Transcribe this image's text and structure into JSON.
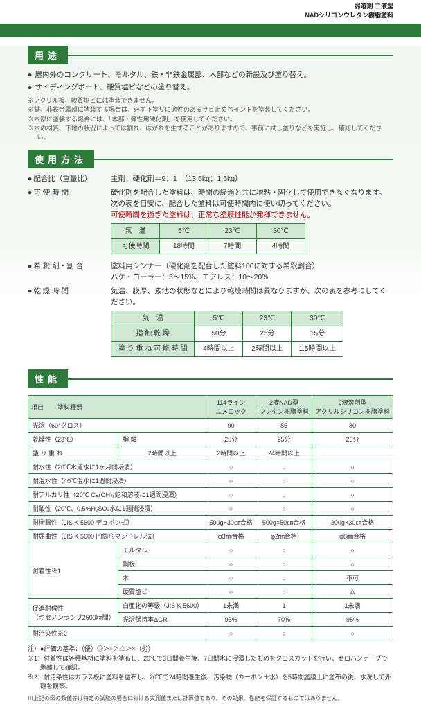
{
  "header": {
    "line1": "弱溶剤 二液型",
    "line2": "NADシリコンウレタン樹脂塗料"
  },
  "sections": {
    "usage": "用途",
    "method": "使用方法",
    "perf": "性能"
  },
  "usage_bullets": [
    "屋内外のコンクリート、モルタル、鉄・非鉄金属部、木部などの新設及び塗り替え。",
    "サイディングボード、硬質塩ビなどの塗り替え。"
  ],
  "usage_notes": [
    "※アクリル板、軟質塩ビには塗装できません。",
    "※鉄、非鉄金属部に塗装する場合は、必ず下塗りに適性のあるサビ止めペイントを塗装してください。",
    "※木部に塗装する場合には、「木部・弾性用硬化剤」を使用してください。",
    "※木の材質、下地の状況によっては割れ、はがれを生ずることがありますので、事前に試し塗りなどを実施し、確認してください。"
  ],
  "method": {
    "ratio": {
      "label": "配合比（重量比）",
      "body": "主剤：硬化剤＝9：1　（13.5kg：1.5kg）"
    },
    "potlife": {
      "label": "可 使 時 間",
      "body1": "硬化剤を配合した塗料は、時間の経過と共に増粘・固化して使用できなくなります。",
      "body2": "次の表を目安に、配合した塗料は可使時間内に使い切ってください。",
      "body3": "可使時間を過ぎた塗料は、正常な塗膜性能が発揮できません。"
    },
    "table1": {
      "hdr": [
        "気　温",
        "5℃",
        "23℃",
        "30℃"
      ],
      "row_label": "可使時間",
      "row": [
        "18時間",
        "7時間",
        "4時間"
      ]
    },
    "thinner": {
      "label": "希 釈 剤・割 合",
      "body1": "塗料用シンナー（硬化剤を配合した塗料100に対する希釈割合）",
      "body2": "ハケ・ローラー：5～15%、エアレス：10～20%"
    },
    "dry": {
      "label": "乾 燥 時 間",
      "body": "気温、膜厚、素地の状態などにより乾燥時間は異なりますが、次の表を参考にしてください。"
    },
    "table2": {
      "hdr": [
        "気　温",
        "5℃",
        "23℃",
        "30℃"
      ],
      "rows": [
        [
          "指 触 乾 燥",
          "50分",
          "25分",
          "15分"
        ],
        [
          "塗 り 重 ね 可 能 時 間",
          "4時間以上",
          "2時間以上",
          "1.5時間以上"
        ]
      ]
    }
  },
  "perf_table": {
    "col_hdrs": [
      "項目",
      "塗料種類",
      "114ライン\nユメロック",
      "2液NAD型\nウレタン樹脂塗料",
      "2液溶剤型\nアクリルシリコン樹脂塗料"
    ],
    "rows": [
      {
        "k1": "光沢（60°グロス）",
        "span": 2,
        "v": [
          "90",
          "85",
          "80"
        ]
      },
      {
        "k1": "乾燥性（23℃）",
        "k2": "指 触",
        "v": [
          "25分",
          "25分",
          "20分"
        ]
      },
      {
        "k1": "",
        "k2": "塗 り 重 ね",
        "v": [
          "2時間以上",
          "2時間以上",
          "24時間以上"
        ]
      },
      {
        "k1": "耐水性（20℃水道水に1ヶ月間浸漬）",
        "span": 2,
        "v": [
          "○",
          "○",
          "○"
        ]
      },
      {
        "k1": "耐温水性（40℃温水に1週間浸漬）",
        "span": 2,
        "v": [
          "○",
          "○",
          "○"
        ]
      },
      {
        "k1": "耐アルカリ性（20℃ Ca(OH)₂飽和溶液に1週間浸漬）",
        "span": 2,
        "v": [
          "○",
          "○",
          "○"
        ]
      },
      {
        "k1": "耐酸性（20℃、0.5%H₂SO₄水に1週間浸漬）",
        "span": 2,
        "v": [
          "○",
          "○",
          "○"
        ]
      },
      {
        "k1": "耐衝撃性（JIS K 5600 デュポン式）",
        "span": 2,
        "v": [
          "500g×30㎝合格",
          "500g×50㎝合格",
          "300g×30㎝合格"
        ]
      },
      {
        "k1": "耐屈曲性（JIS K 5600 円筒形マンドレル法）",
        "span": 2,
        "v": [
          "φ3㎜合格",
          "φ2㎜合格",
          "φ8㎜合格"
        ]
      },
      {
        "k1": "付着性※1",
        "k2": "モルタル",
        "rowspan": 4,
        "v": [
          "○",
          "○",
          "○"
        ]
      },
      {
        "k1": "",
        "k2": "鋼板",
        "v": [
          "○",
          "○",
          "○"
        ]
      },
      {
        "k1": "",
        "k2": "木",
        "v": [
          "○",
          "○",
          "不可"
        ]
      },
      {
        "k1": "",
        "k2": "硬質塩ビ",
        "v": [
          "○",
          "○",
          "△"
        ]
      },
      {
        "k1": "促進耐候性\n（キセノンランプ2500時間）",
        "k2": "白亜化の等級（JIS K 5600）",
        "rowspan": 2,
        "v": [
          "1未満",
          "1",
          "1未満"
        ]
      },
      {
        "k1": "",
        "k2": "光沢保持率ΔGR",
        "v": [
          "93%",
          "70%",
          "95%"
        ]
      },
      {
        "k1": "耐汚染性※2",
        "span": 2,
        "v": [
          "○",
          "○",
          "○"
        ]
      }
    ]
  },
  "footer": {
    "criteria": "注）●評価の基準：（優）◎＞○＞△＞×（劣）",
    "n1": "※1：付着性は各種基材に塗料を塗布し、20℃で3日間養生後、7日間水に浸漬したものをクロスカットを行い、セロハンテープで剥離して確認。",
    "n2": "※2：耐汚染性はガラス板に塗料を塗布し、20℃で24時間養生後、汚染物（カーボン＋水）を5時間塗膜上に塗布の後、水洗して外観を観察。",
    "disclaimer": "※上記の図の数値等は特定の試験の場合における実測値または計算値であり、その効果、性能を保証するものではありません。"
  }
}
